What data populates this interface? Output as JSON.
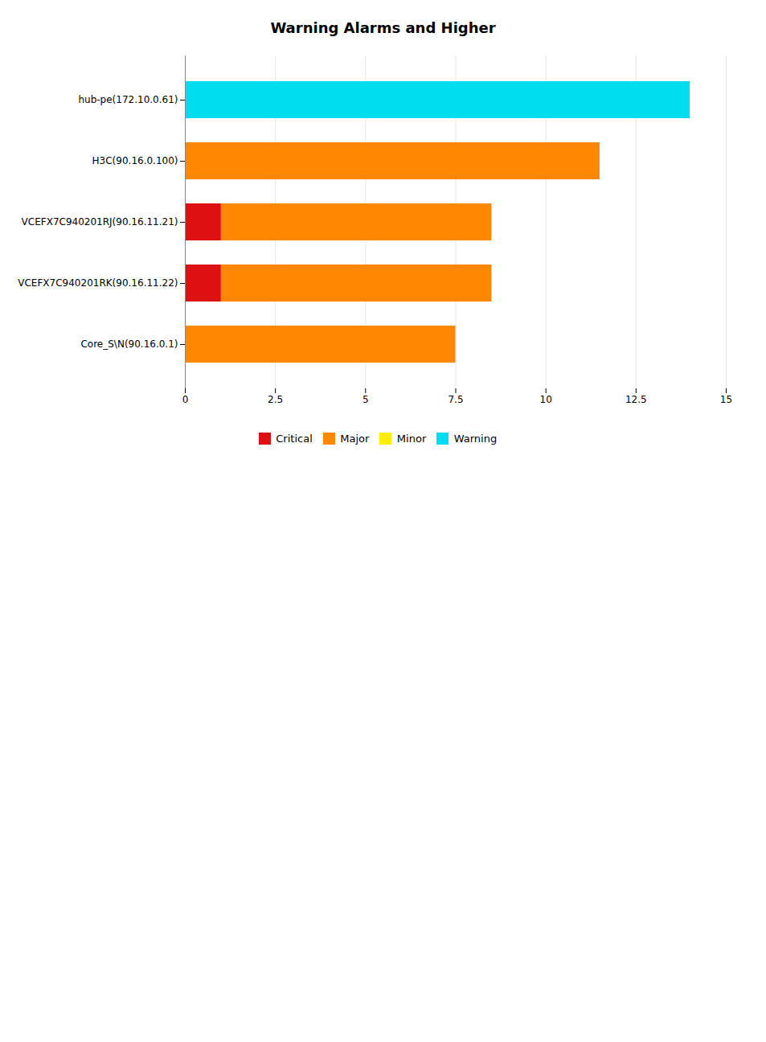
{
  "chart_data": {
    "type": "bar",
    "orientation": "horizontal",
    "stacked": true,
    "title": "Warning Alarms and Higher",
    "categories": [
      "hub-pe(172.10.0.61)",
      "H3C(90.16.0.100)",
      "VCEFX7C940201RJ(90.16.11.21)",
      "VCEFX7C940201RK(90.16.11.22)",
      "Core_S\\N(90.16.0.1)"
    ],
    "series": [
      {
        "name": "Critical",
        "color": "#dd1111",
        "values": [
          0,
          0,
          1.0,
          1.0,
          0
        ]
      },
      {
        "name": "Major",
        "color": "#ff8800",
        "values": [
          0,
          11.5,
          7.5,
          7.5,
          7.5
        ]
      },
      {
        "name": "Minor",
        "color": "#ffee00",
        "values": [
          0,
          0,
          0,
          0,
          0
        ]
      },
      {
        "name": "Warning",
        "color": "#00ddee",
        "values": [
          14.0,
          0,
          0,
          0,
          0
        ]
      }
    ],
    "xlim": [
      0,
      15
    ],
    "xticks": [
      0,
      2.5,
      5,
      7.5,
      10,
      12.5,
      15
    ],
    "grid": true,
    "legend": "bottom"
  }
}
